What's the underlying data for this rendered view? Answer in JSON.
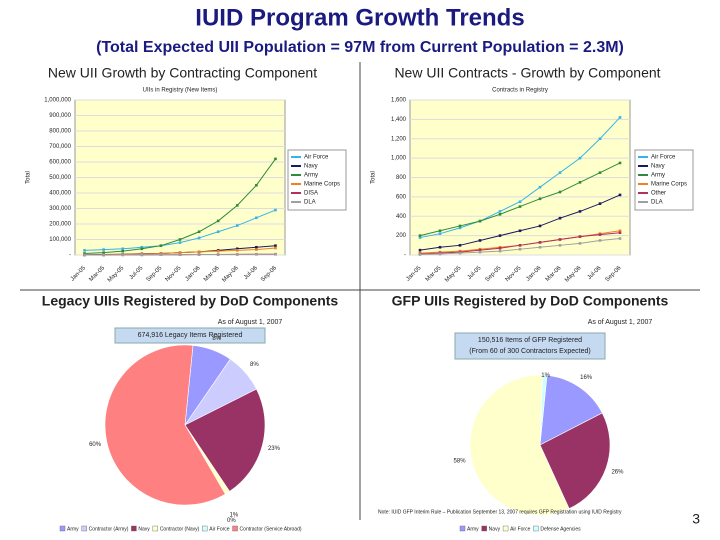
{
  "title": "IUID Program Growth Trends",
  "subtitle": "(Total Expected UII Population = 97M from Current Population = 2.3M)",
  "page_number": "3",
  "chart_data": [
    {
      "type": "line",
      "title": "New UII Growth by Contracting Component",
      "subtitle": "UIIs in Registry (New Items)",
      "y_label": "Total",
      "categories": [
        "Jan-05",
        "Mar-05",
        "May-05",
        "Jul-05",
        "Sep-05",
        "Nov-05",
        "Jan-06",
        "Mar-06",
        "May-06",
        "Jul-06",
        "Sep-06"
      ],
      "ylim": [
        0,
        1000000
      ],
      "yticks": [
        {
          "value": 0,
          "label": "-"
        },
        {
          "value": 100000,
          "label": "100,000"
        },
        {
          "value": 200000,
          "label": "200,000"
        },
        {
          "value": 300000,
          "label": "300,000"
        },
        {
          "value": 400000,
          "label": "400,000"
        },
        {
          "value": 500000,
          "label": "500,000"
        },
        {
          "value": 600000,
          "label": "600,000"
        },
        {
          "value": 700000,
          "label": "700,000"
        },
        {
          "value": 800000,
          "label": "800,000"
        },
        {
          "value": 900000,
          "label": "900,000"
        },
        {
          "value": 1000000,
          "label": "1,000,000"
        }
      ],
      "grid": true,
      "series": [
        {
          "name": "Air Force",
          "color": "#33b5e5",
          "values": [
            30000,
            35000,
            40000,
            50000,
            60000,
            80000,
            110000,
            150000,
            190000,
            240000,
            290000
          ]
        },
        {
          "name": "Navy",
          "color": "#1a1a5e",
          "values": [
            2000,
            3000,
            5000,
            8000,
            10000,
            15000,
            20000,
            30000,
            40000,
            50000,
            60000
          ]
        },
        {
          "name": "Army",
          "color": "#2e8b3a",
          "values": [
            10000,
            15000,
            25000,
            40000,
            60000,
            100000,
            150000,
            220000,
            320000,
            450000,
            620000
          ]
        },
        {
          "name": "Marine Corps",
          "color": "#f08020",
          "values": [
            1000,
            2000,
            4000,
            6000,
            10000,
            15000,
            20000,
            25000,
            30000,
            35000,
            45000
          ]
        },
        {
          "name": "DISA",
          "color": "#b03060",
          "values": [
            0,
            0,
            1000,
            1000,
            2000,
            2000,
            3000,
            3000,
            4000,
            5000,
            5000
          ]
        },
        {
          "name": "DLA",
          "color": "#a0a0a0",
          "values": [
            0,
            500,
            1000,
            1500,
            2000,
            2500,
            3000,
            3500,
            4000,
            4500,
            5000
          ]
        }
      ]
    },
    {
      "type": "line",
      "title": "New UII Contracts - Growth by Component",
      "subtitle": "Contracts in Registry",
      "y_label": "Total",
      "categories": [
        "Jan-05",
        "Mar-05",
        "May-05",
        "Jul-05",
        "Sep-05",
        "Nov-05",
        "Jan-06",
        "Mar-06",
        "May-06",
        "Jul-06",
        "Sep-06"
      ],
      "ylim": [
        0,
        1600
      ],
      "yticks": [
        {
          "value": 0,
          "label": "-"
        },
        200,
        400,
        600,
        800,
        {
          "value": 1000,
          "label": "1,000"
        },
        {
          "value": 1200,
          "label": "1,200"
        },
        {
          "value": 1400,
          "label": "1,400"
        },
        {
          "value": 1600,
          "label": "1,600"
        }
      ],
      "grid": true,
      "series": [
        {
          "name": "Air Force",
          "color": "#33b5e5",
          "values": [
            180,
            220,
            280,
            350,
            450,
            550,
            700,
            850,
            1000,
            1200,
            1420
          ]
        },
        {
          "name": "Navy",
          "color": "#1a1a5e",
          "values": [
            50,
            80,
            100,
            150,
            200,
            250,
            300,
            380,
            450,
            530,
            620
          ]
        },
        {
          "name": "Army",
          "color": "#2e8b3a",
          "values": [
            200,
            250,
            300,
            350,
            420,
            500,
            580,
            650,
            750,
            850,
            950
          ]
        },
        {
          "name": "Marine Corps",
          "color": "#f08020",
          "values": [
            20,
            30,
            40,
            60,
            80,
            100,
            130,
            160,
            190,
            220,
            250
          ]
        },
        {
          "name": "Other",
          "color": "#b03060",
          "values": [
            10,
            20,
            30,
            50,
            70,
            100,
            130,
            160,
            190,
            210,
            230
          ]
        },
        {
          "name": "DLA",
          "color": "#a0a0a0",
          "values": [
            5,
            10,
            20,
            30,
            40,
            60,
            80,
            100,
            120,
            150,
            170
          ]
        }
      ]
    },
    {
      "type": "pie",
      "title": "Legacy UIIs Registered by DoD Components",
      "date": "As of August 1, 2007",
      "box": [
        "674,916 Legacy Items Registered"
      ],
      "categories": [
        "Army",
        "Contractor (Army)",
        "Navy",
        "Contractor (Navy)",
        "Air Force",
        "Contractor (Service Abroad)"
      ],
      "values": [
        8,
        8,
        23,
        1,
        0,
        60
      ],
      "value_labels": [
        "8%",
        "8%",
        "23%",
        "1%",
        "0%",
        "60%"
      ],
      "colors": [
        "#9999ff",
        "#ccccff",
        "#993366",
        "#ffffcc",
        "#ccffff",
        "#ff8080"
      ]
    },
    {
      "type": "pie",
      "title": "GFP UIIs Registered by DoD Components",
      "date": "As of August 1, 2007",
      "box": [
        "150,516 Items of GFP Registered",
        "(From 60 of 300 Contractors Expected)"
      ],
      "note": "Note: IUID GFP Interim Rule – Publication September 13, 2007 requires GFP Registration using IUID Registry",
      "categories": [
        "Army",
        "Navy",
        "Air Force",
        "Defense Agencies"
      ],
      "values": [
        16,
        26,
        58,
        1
      ],
      "value_labels": [
        "16%",
        "26%",
        "58%",
        "1%"
      ],
      "colors": [
        "#9999ff",
        "#993366",
        "#ffffcc",
        "#ccffff"
      ]
    }
  ]
}
